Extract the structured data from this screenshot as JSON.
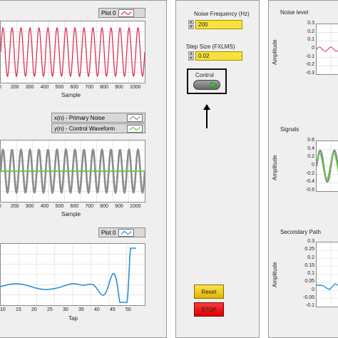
{
  "left_panel": {
    "graph1": {
      "legend": "Plot 0",
      "xlabel": "Sample",
      "xticks": [
        "00",
        "200",
        "300",
        "400",
        "500",
        "600",
        "700",
        "800",
        "900",
        "1000"
      ],
      "line_color": "#e03050"
    },
    "graph2": {
      "legend_noise": "x(n) - Primary Noise",
      "legend_control": "y(n) - Control Waveform",
      "xlabel": "Sample",
      "xticks": [
        "00",
        "200",
        "300",
        "400",
        "500",
        "600",
        "700",
        "800",
        "900",
        "1000"
      ],
      "noise_color": "#8c8c8c",
      "control_color": "#55d030"
    },
    "graph3": {
      "legend": "Plot 0",
      "xlabel": "Tap",
      "xticks": [
        "10",
        "15",
        "20",
        "25",
        "30",
        "35",
        "40",
        "45",
        "50"
      ],
      "line_color": "#2a8fd8"
    }
  },
  "controls": {
    "noise_frequency": {
      "label": "Noise Frequency (Hz)",
      "value": "200"
    },
    "step_size": {
      "label": "Step Size (FXLMS)",
      "value": "0.02"
    },
    "control": {
      "label": "Control"
    },
    "reset_label": "Reset",
    "stop_label": "STOP"
  },
  "right_panel": {
    "noise_level": {
      "title": "Noise level",
      "ylabel": "Amplitude",
      "yticks": [
        "0.3",
        "0.2",
        "0.1",
        "0",
        "-0.1",
        "-0.2",
        "-0.3"
      ]
    },
    "signals": {
      "title": "Signals",
      "ylabel": "Amplitude",
      "yticks": [
        "0.6",
        "0.4",
        "0.2",
        "0",
        "-0.2",
        "-0.4",
        "-0.6"
      ]
    },
    "secondary_path": {
      "title": "Secondary Path",
      "ylabel": "Amplitude",
      "yticks": [
        "0.3",
        "0.25",
        "0.2",
        "0.15",
        "0.1",
        "0.05",
        "0",
        "-0.05",
        "-0.1"
      ]
    }
  }
}
